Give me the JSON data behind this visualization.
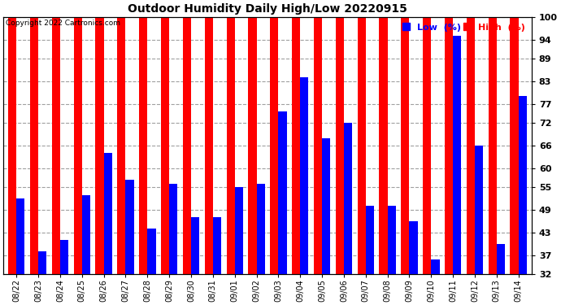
{
  "title": "Outdoor Humidity Daily High/Low 20220915",
  "copyright": "Copyright 2022 Cartronics.com",
  "ylabel_right_ticks": [
    32,
    37,
    43,
    49,
    55,
    60,
    66,
    72,
    77,
    83,
    89,
    94,
    100
  ],
  "ylim": [
    32,
    100
  ],
  "background_color": "#ffffff",
  "bar_color_high": "#ff0000",
  "bar_color_low": "#0000ff",
  "legend_low_label": "Low  (%)",
  "legend_high_label": "High  (%)",
  "dates": [
    "08/22",
    "08/23",
    "08/24",
    "08/25",
    "08/26",
    "08/27",
    "08/28",
    "08/29",
    "08/30",
    "08/31",
    "09/01",
    "09/02",
    "09/03",
    "09/04",
    "09/05",
    "09/06",
    "09/07",
    "09/08",
    "09/09",
    "09/10",
    "09/11",
    "09/12",
    "09/13",
    "09/14"
  ],
  "high": [
    100,
    100,
    100,
    100,
    100,
    100,
    100,
    100,
    100,
    100,
    100,
    100,
    100,
    100,
    100,
    100,
    100,
    100,
    100,
    100,
    100,
    100,
    100,
    100
  ],
  "low": [
    52,
    38,
    41,
    53,
    64,
    57,
    44,
    56,
    47,
    47,
    55,
    56,
    75,
    84,
    68,
    72,
    50,
    50,
    46,
    36,
    95,
    66,
    40,
    79
  ]
}
